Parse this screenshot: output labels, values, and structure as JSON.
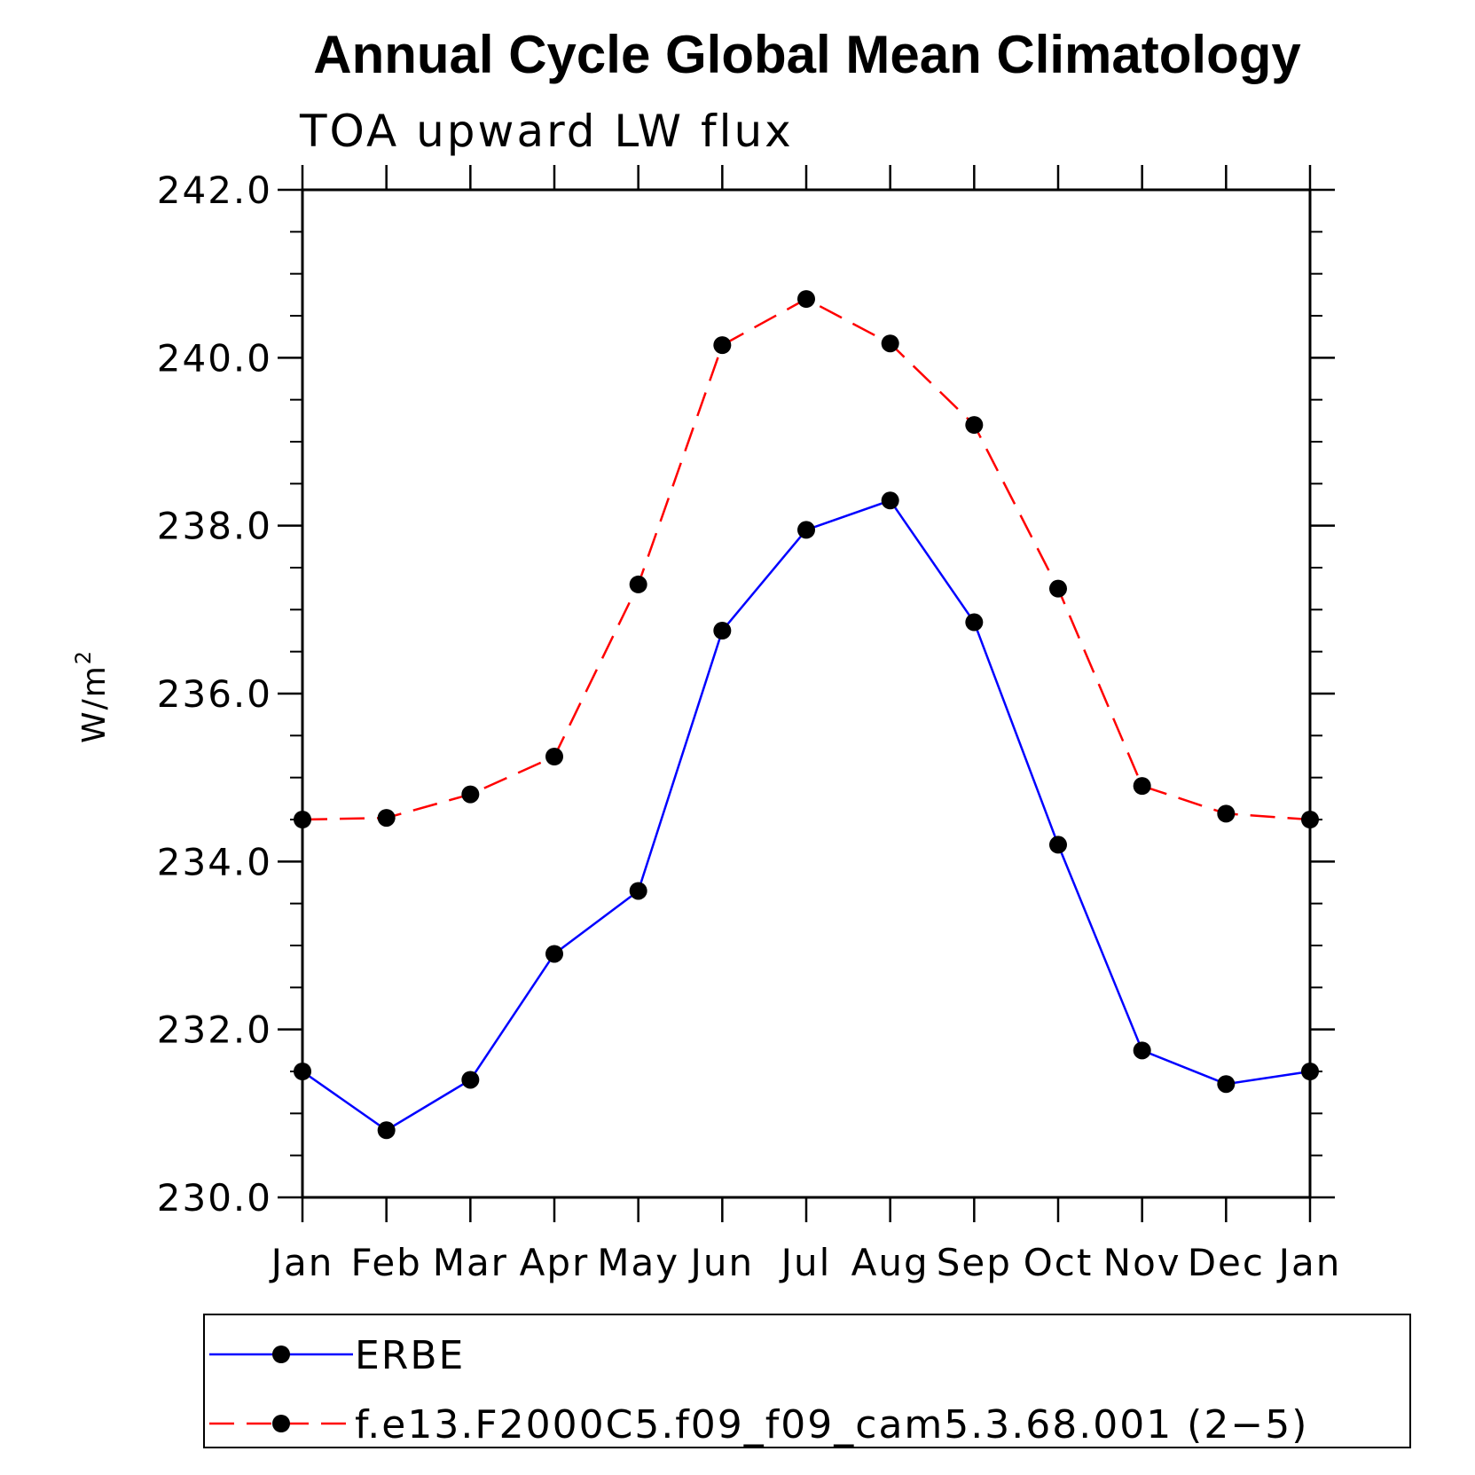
{
  "chart_data": {
    "type": "line",
    "title": "Annual Cycle Global Mean Climatology",
    "subtitle": "TOA upward LW flux",
    "ylabel": "W/m",
    "ylabel_superscript": "2",
    "xlabel": "",
    "categories": [
      "Jan",
      "Feb",
      "Mar",
      "Apr",
      "May",
      "Jun",
      "Jul",
      "Aug",
      "Sep",
      "Oct",
      "Nov",
      "Dec",
      "Jan"
    ],
    "ylim": [
      230.0,
      242.0
    ],
    "yticks": [
      "230.0",
      "232.0",
      "234.0",
      "236.0",
      "238.0",
      "240.0",
      "242.0"
    ],
    "grid": false,
    "legend_position": "bottom",
    "series": [
      {
        "name": "ERBE",
        "color": "#0000ff",
        "dash": "solid",
        "marker": "filled-circle",
        "values": [
          231.5,
          230.8,
          231.4,
          232.9,
          233.65,
          236.75,
          237.95,
          238.3,
          236.85,
          234.2,
          231.75,
          231.35,
          231.5
        ]
      },
      {
        "name": "f.e13.F2000C5.f09_f09_cam5.3.68.001 (2−5)",
        "color": "#ff0000",
        "dash": "dashed",
        "marker": "filled-circle",
        "values": [
          234.5,
          234.52,
          234.8,
          235.25,
          237.3,
          240.15,
          240.7,
          240.17,
          239.2,
          237.25,
          234.9,
          234.57,
          234.5
        ]
      }
    ]
  }
}
